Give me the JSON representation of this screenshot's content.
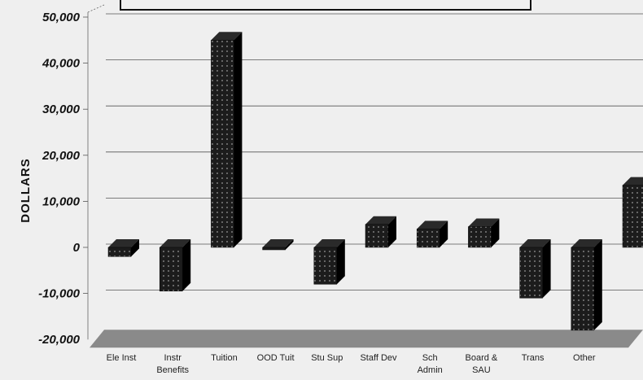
{
  "chart_data": {
    "type": "bar",
    "title": "",
    "ylabel": "DOLLARS",
    "xlabel": "",
    "ylim": [
      -20000,
      50000
    ],
    "yticks": [
      "50,000",
      "40,000",
      "30,000",
      "20,000",
      "10,000",
      "0",
      "-10,000",
      "-20,000"
    ],
    "categories": [
      "Ele Inst",
      "Instr Benefits",
      "Tuition",
      "OOD Tuit",
      "Stu Sup",
      "Staff Dev",
      "Sch Admin",
      "Board & SAU",
      "Trans",
      "Other",
      ""
    ],
    "category_lines": [
      [
        "Ele Inst"
      ],
      [
        "Instr",
        "Benefits"
      ],
      [
        "Tuition"
      ],
      [
        "OOD Tuit"
      ],
      [
        "Stu Sup"
      ],
      [
        "Staff Dev"
      ],
      [
        "Sch",
        "Admin"
      ],
      [
        "Board &",
        "SAU"
      ],
      [
        "Trans"
      ],
      [
        "Other"
      ],
      [
        ""
      ]
    ],
    "values": [
      -2000,
      -9500,
      45000,
      -500,
      -8000,
      5000,
      4000,
      4500,
      -11000,
      -18000,
      13500
    ],
    "grid": true,
    "colors": {
      "bar": "#1c1c1c",
      "bar_side": "#000000",
      "dots": "#9a9a9a",
      "floor": "#8a8a8a",
      "background": "#efefef"
    }
  }
}
